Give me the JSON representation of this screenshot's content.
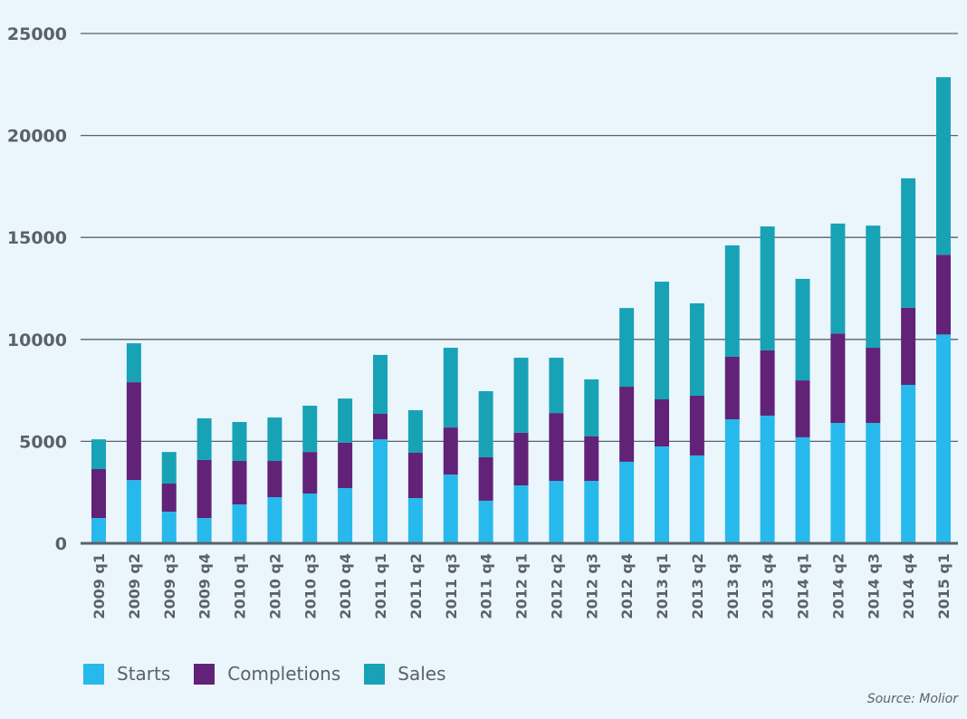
{
  "chart_data": {
    "type": "bar",
    "stacked": true,
    "title": "",
    "xlabel": "",
    "ylabel": "",
    "ylim": [
      0,
      25000
    ],
    "yticks": [
      0,
      5000,
      10000,
      15000,
      20000,
      25000
    ],
    "ytick_labels": [
      "0",
      "5000",
      "10000",
      "15000",
      "20000",
      "25000"
    ],
    "grid": true,
    "legend_position": "bottom-left",
    "categories": [
      "2009 q1",
      "2009 q2",
      "2009 q3",
      "2009 q4",
      "2010 q1",
      "2010 q2",
      "2010 q3",
      "2010 q4",
      "2011 q1",
      "2011 q2",
      "2011 q3",
      "2011 q4",
      "2012 q1",
      "2012 q2",
      "2012 q3",
      "2012 q4",
      "2013 q1",
      "2013 q2",
      "2013 q3",
      "2013 q4",
      "2014 q1",
      "2014 q2",
      "2014 q3",
      "2014 q4",
      "2015 q1"
    ],
    "series": [
      {
        "name": "Starts",
        "color": "#27b9ec",
        "values": [
          1240,
          3100,
          1550,
          1240,
          1910,
          2260,
          2440,
          2710,
          5100,
          2220,
          3370,
          2090,
          2840,
          3060,
          3060,
          4000,
          4750,
          4310,
          6080,
          6260,
          5200,
          5900,
          5900,
          7770,
          10240
        ]
      },
      {
        "name": "Completions",
        "color": "#612277",
        "values": [
          2400,
          4800,
          1380,
          2850,
          2130,
          1780,
          2040,
          2220,
          1250,
          2220,
          2310,
          2130,
          2580,
          3330,
          2180,
          3680,
          2310,
          2930,
          3070,
          3200,
          2790,
          4390,
          3690,
          3780,
          3910
        ]
      },
      {
        "name": "Sales",
        "color": "#17a3b5",
        "values": [
          1460,
          1910,
          1550,
          2040,
          1910,
          2130,
          2270,
          2170,
          2890,
          2090,
          3910,
          3240,
          3680,
          2710,
          2800,
          3860,
          5770,
          4530,
          5460,
          6080,
          4980,
          5390,
          5990,
          6350,
          8710
        ]
      }
    ],
    "source": "Source: Molior"
  }
}
